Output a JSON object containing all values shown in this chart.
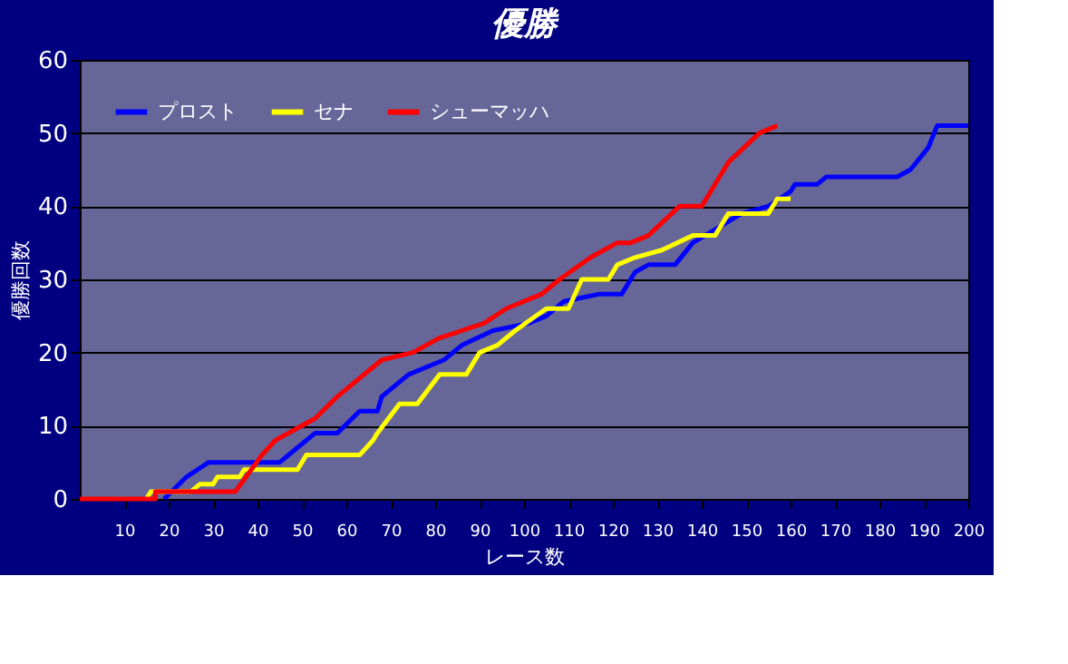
{
  "chart_data": {
    "type": "line",
    "title": "優勝",
    "xlabel": "レース数",
    "ylabel": "優勝回数",
    "xlim": [
      0,
      200
    ],
    "xticks": [
      10,
      20,
      30,
      40,
      50,
      60,
      70,
      80,
      90,
      100,
      110,
      120,
      130,
      140,
      150,
      160,
      170,
      180,
      190,
      200
    ],
    "ylim": [
      0,
      60
    ],
    "yticks": [
      0,
      10,
      20,
      30,
      40,
      50,
      60
    ],
    "grid": "y",
    "legend": "top left",
    "marker": "none",
    "line_style": "solid",
    "series": [
      {
        "name": "プロスト",
        "color": "#0000ff",
        "x": [
          19,
          24,
          29,
          45,
          49,
          53,
          58,
          63,
          67,
          68,
          74,
          82,
          86,
          93,
          101,
          105,
          109,
          117,
          122,
          125,
          128,
          134,
          138,
          149,
          155,
          160,
          161,
          166,
          168,
          184,
          187,
          191,
          193,
          200
        ],
        "values": [
          0,
          3,
          5,
          5,
          7,
          9,
          9,
          12,
          12,
          14,
          17,
          19,
          21,
          23,
          24,
          25,
          27,
          28,
          28,
          31,
          32,
          32,
          35,
          39,
          40,
          42,
          43,
          43,
          44,
          44,
          45,
          48,
          51,
          51
        ]
      },
      {
        "name": "セナ",
        "color": "#ffff00",
        "x": [
          15,
          16,
          25,
          27,
          30,
          31,
          36,
          37,
          49,
          51,
          63,
          66,
          67,
          72,
          76,
          81,
          87,
          90,
          94,
          98,
          105,
          110,
          113,
          119,
          121,
          125,
          131,
          138,
          143,
          146,
          155,
          157,
          160
        ],
        "values": [
          0,
          1,
          1,
          2,
          2,
          3,
          3,
          4,
          4,
          6,
          6,
          8,
          9,
          13,
          13,
          17,
          17,
          20,
          21,
          23,
          26,
          26,
          30,
          30,
          32,
          33,
          34,
          36,
          36,
          39,
          39,
          41,
          41
        ]
      },
      {
        "name": "シューマッハ",
        "color": "#ff0000",
        "x": [
          0,
          17,
          17,
          35,
          41,
          44,
          53,
          58,
          66,
          68,
          75,
          81,
          91,
          96,
          104,
          108,
          115,
          121,
          124,
          128,
          135,
          140,
          146,
          153,
          157
        ],
        "values": [
          0,
          0,
          1,
          1,
          6,
          8,
          11,
          14,
          18,
          19,
          20,
          22,
          24,
          26,
          28,
          30,
          33,
          35,
          35,
          36,
          40,
          40,
          46,
          50,
          51
        ]
      }
    ]
  }
}
